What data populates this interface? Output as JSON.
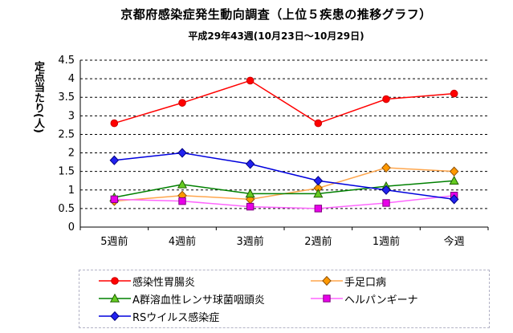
{
  "title": "京都府感染症発生動向調査（上位５疾患の推移グラフ）",
  "subtitle": "平成29年43週(10月23日～10月29日)",
  "chart_data": {
    "type": "line",
    "title": "京都府感染症発生動向調査（上位５疾患の推移グラフ）",
    "subtitle": "平成29年43週(10月23日～10月29日)",
    "ylabel": "定点当たり(人)",
    "xlabel": "",
    "ylim": [
      0,
      4.5
    ],
    "ytick_step": 0.5,
    "ytick_labels": [
      "0",
      "0.5",
      "1",
      "1.5",
      "2",
      "2.5",
      "3",
      "3.5",
      "4",
      "4.5"
    ],
    "grid": "horizontal-dashed",
    "legend_position": "bottom",
    "categories": [
      "5週前",
      "4週前",
      "3週前",
      "2週前",
      "1週前",
      "今週"
    ],
    "series": [
      {
        "name": "感染性胃腸炎",
        "marker": "circle",
        "line_color": "#ff0000",
        "marker_fill": "#ff0000",
        "marker_stroke": "#cc0000",
        "values": [
          2.8,
          3.35,
          3.95,
          2.8,
          3.45,
          3.6
        ]
      },
      {
        "name": "手足口病",
        "marker": "diamond",
        "line_color": "#ffa64d",
        "marker_fill": "#ff9900",
        "marker_stroke": "#8f4f00",
        "values": [
          0.7,
          0.85,
          0.75,
          1.05,
          1.6,
          1.5
        ]
      },
      {
        "name": "A群溶血性レンサ球菌咽頭炎",
        "marker": "triangle",
        "line_color": "#008000",
        "marker_fill": "#66cc22",
        "marker_stroke": "#1f6000",
        "values": [
          0.8,
          1.15,
          0.9,
          0.9,
          1.1,
          1.25
        ]
      },
      {
        "name": "ヘルパンギーナ",
        "marker": "square",
        "line_color": "#ff66ff",
        "marker_fill": "#e800e8",
        "marker_stroke": "#7f007f",
        "values": [
          0.75,
          0.7,
          0.55,
          0.5,
          0.65,
          0.85
        ]
      },
      {
        "name": "RSウイルス感染症",
        "marker": "diamond",
        "line_color": "#0000dd",
        "marker_fill": "#2222f0",
        "marker_stroke": "#000080",
        "values": [
          1.8,
          2.0,
          1.7,
          1.25,
          1.0,
          0.75
        ]
      }
    ]
  }
}
